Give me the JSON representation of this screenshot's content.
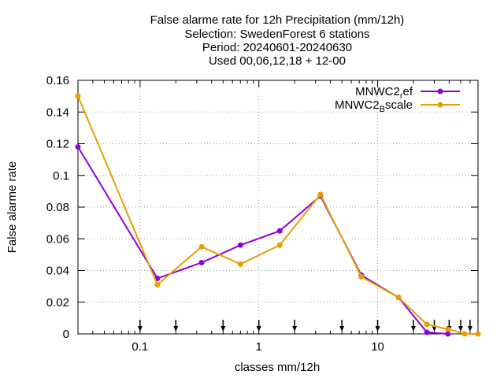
{
  "chart_data": {
    "type": "line",
    "title_lines": [
      "False alarme rate  for 12h Precipitation (mm/12h)",
      "Selection: SwedenForest      6 stations",
      "Period: 20240601-20240630",
      "Used 00,06,12,18 + 12-00"
    ],
    "xlabel": "classes mm/12h",
    "ylabel": "False alarme rate",
    "xscale": "log",
    "xlim": [
      0.03,
      70
    ],
    "ylim": [
      0,
      0.16
    ],
    "xticks": [
      {
        "value": 0.1,
        "label": "0.1"
      },
      {
        "value": 1,
        "label": "1"
      },
      {
        "value": 10,
        "label": "10"
      }
    ],
    "yticks": [
      {
        "value": 0,
        "label": "0"
      },
      {
        "value": 0.02,
        "label": "0.02"
      },
      {
        "value": 0.04,
        "label": "0.04"
      },
      {
        "value": 0.06,
        "label": "0.06"
      },
      {
        "value": 0.08,
        "label": "0.08"
      },
      {
        "value": 0.1,
        "label": "0.1"
      },
      {
        "value": 0.12,
        "label": "0.12"
      },
      {
        "value": 0.14,
        "label": "0.14"
      },
      {
        "value": 0.16,
        "label": "0.16"
      }
    ],
    "grid": true,
    "legend_position": "top-right",
    "threshold_arrows": [
      0.1,
      0.2,
      0.5,
      1,
      2,
      5,
      10,
      20,
      30,
      40,
      50,
      60
    ],
    "x": [
      0.03,
      0.14,
      0.33,
      0.7,
      1.5,
      3.3,
      7.3,
      15,
      26,
      39,
      54,
      70
    ],
    "series": [
      {
        "name_base": "MNWC2",
        "name_sub": "r",
        "name_rest": "ef",
        "color": "#9400d3",
        "values": [
          0.118,
          0.035,
          0.045,
          0.056,
          0.065,
          0.087,
          0.037,
          0.023,
          0.001,
          0.0,
          null,
          null
        ]
      },
      {
        "name_base": "MNWC2",
        "name_sub": "B",
        "name_rest": "scale",
        "color": "#e69f00",
        "values": [
          0.15,
          0.031,
          0.055,
          0.044,
          0.056,
          0.088,
          0.036,
          0.023,
          0.006,
          0.003,
          0.0,
          0.0
        ]
      }
    ]
  }
}
